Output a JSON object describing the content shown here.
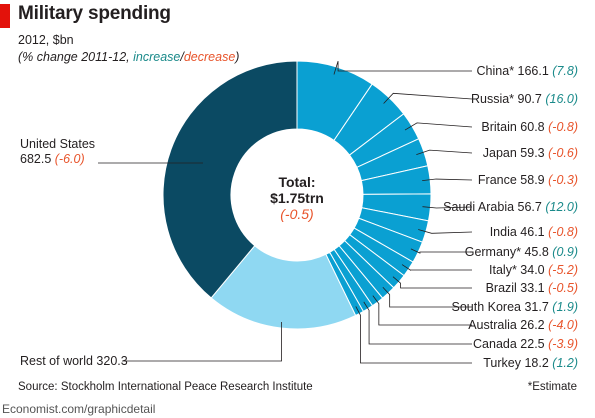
{
  "header": {
    "title": "Military spending",
    "subtitle": "2012, $bn",
    "note_open": "(% change 2011-12, ",
    "note_increase": "increase",
    "note_slash": "/",
    "note_decrease": "decrease",
    "note_close": ")"
  },
  "center": {
    "total_label": "Total:",
    "total_value": "$1.75trn",
    "total_change": "(-0.5)"
  },
  "colors": {
    "united_states": "#0b4a63",
    "countries": "#0aa0d2",
    "rest_of_world": "#8fd8f2",
    "increase": "#1a8a8a",
    "decrease": "#e8542b",
    "brand_red": "#e3120b"
  },
  "chart_data": {
    "type": "pie",
    "title": "Military spending",
    "subtitle": "2012, $bn",
    "total": "$1.75trn",
    "total_change": -0.5,
    "slices": [
      {
        "name": "China*",
        "value": 166.1,
        "change": 7.8
      },
      {
        "name": "Russia*",
        "value": 90.7,
        "change": 16.0
      },
      {
        "name": "Britain",
        "value": 60.8,
        "change": -0.8
      },
      {
        "name": "Japan",
        "value": 59.3,
        "change": -0.6
      },
      {
        "name": "France",
        "value": 58.9,
        "change": -0.3
      },
      {
        "name": "Saudi Arabia",
        "value": 56.7,
        "change": 12.0
      },
      {
        "name": "India",
        "value": 46.1,
        "change": -0.8
      },
      {
        "name": "Germany*",
        "value": 45.8,
        "change": 0.9
      },
      {
        "name": "Italy*",
        "value": 34.0,
        "change": -5.2
      },
      {
        "name": "Brazil",
        "value": 33.1,
        "change": -0.5
      },
      {
        "name": "South Korea",
        "value": 31.7,
        "change": 1.9
      },
      {
        "name": "Australia",
        "value": 26.2,
        "change": -4.0
      },
      {
        "name": "Canada",
        "value": 22.5,
        "change": -3.9
      },
      {
        "name": "Turkey",
        "value": 18.2,
        "change": 1.2
      },
      {
        "name": "Rest of world",
        "value": 320.3,
        "change": null
      },
      {
        "name": "United States",
        "value": 682.5,
        "change": -6.0
      }
    ],
    "value_labels": [
      "166.1",
      "90.7",
      "60.8",
      "59.3",
      "58.9",
      "56.7",
      "46.1",
      "45.8",
      "34.0",
      "33.1",
      "31.7",
      "26.2",
      "22.5",
      "18.2",
      "320.3",
      "682.5"
    ],
    "change_labels": [
      "(7.8)",
      "(16.0)",
      "(-0.8)",
      "(-0.6)",
      "(-0.3)",
      "(12.0)",
      "(-0.8)",
      "(0.9)",
      "(-5.2)",
      "(-0.5)",
      "(1.9)",
      "(-4.0)",
      "(-3.9)",
      "(1.2)",
      "",
      "(-6.0)"
    ]
  },
  "footer": {
    "source": "Source: Stockholm International Peace Research Institute",
    "estimate_note": "*Estimate",
    "brand": "Economist.com/graphicdetail"
  }
}
